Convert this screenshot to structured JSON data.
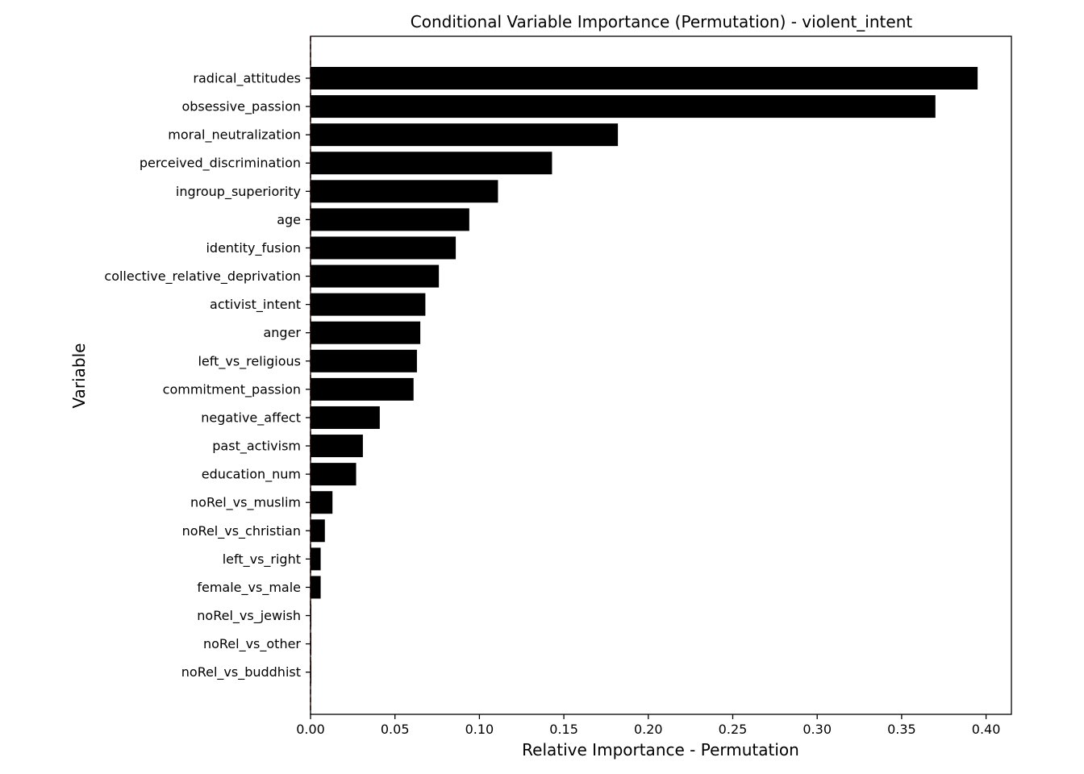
{
  "chart_data": {
    "type": "bar",
    "orientation": "horizontal",
    "title": "Conditional Variable Importance (Permutation) - violent_intent",
    "xlabel": "Relative Importance - Permutation",
    "ylabel": "Variable",
    "xlim": [
      0,
      0.415
    ],
    "xticks": [
      "0.00",
      "0.05",
      "0.10",
      "0.15",
      "0.20",
      "0.25",
      "0.30",
      "0.35",
      "0.40"
    ],
    "xtick_values": [
      0,
      0.05,
      0.1,
      0.15,
      0.2,
      0.25,
      0.3,
      0.35,
      0.4
    ],
    "reference_line": {
      "x": 0,
      "color": "#8b0000",
      "style": "dashed"
    },
    "bar_color": "#000000",
    "grid": false,
    "categories": [
      "radical_attitudes",
      "obsessive_passion",
      "moral_neutralization",
      "perceived_discrimination",
      "ingroup_superiority",
      "age",
      "identity_fusion",
      "collective_relative_deprivation",
      "activist_intent",
      "anger",
      "left_vs_religious",
      "commitment_passion",
      "negative_affect",
      "past_activism",
      "education_num",
      "noRel_vs_muslim",
      "noRel_vs_christian",
      "left_vs_right",
      "female_vs_male",
      "noRel_vs_jewish",
      "noRel_vs_other",
      "noRel_vs_buddhist"
    ],
    "values": [
      0.395,
      0.37,
      0.182,
      0.143,
      0.111,
      0.094,
      0.086,
      0.076,
      0.068,
      0.065,
      0.063,
      0.061,
      0.041,
      0.031,
      0.027,
      0.013,
      0.0085,
      0.006,
      0.006,
      0.0005,
      0.0005,
      0.0005
    ]
  }
}
